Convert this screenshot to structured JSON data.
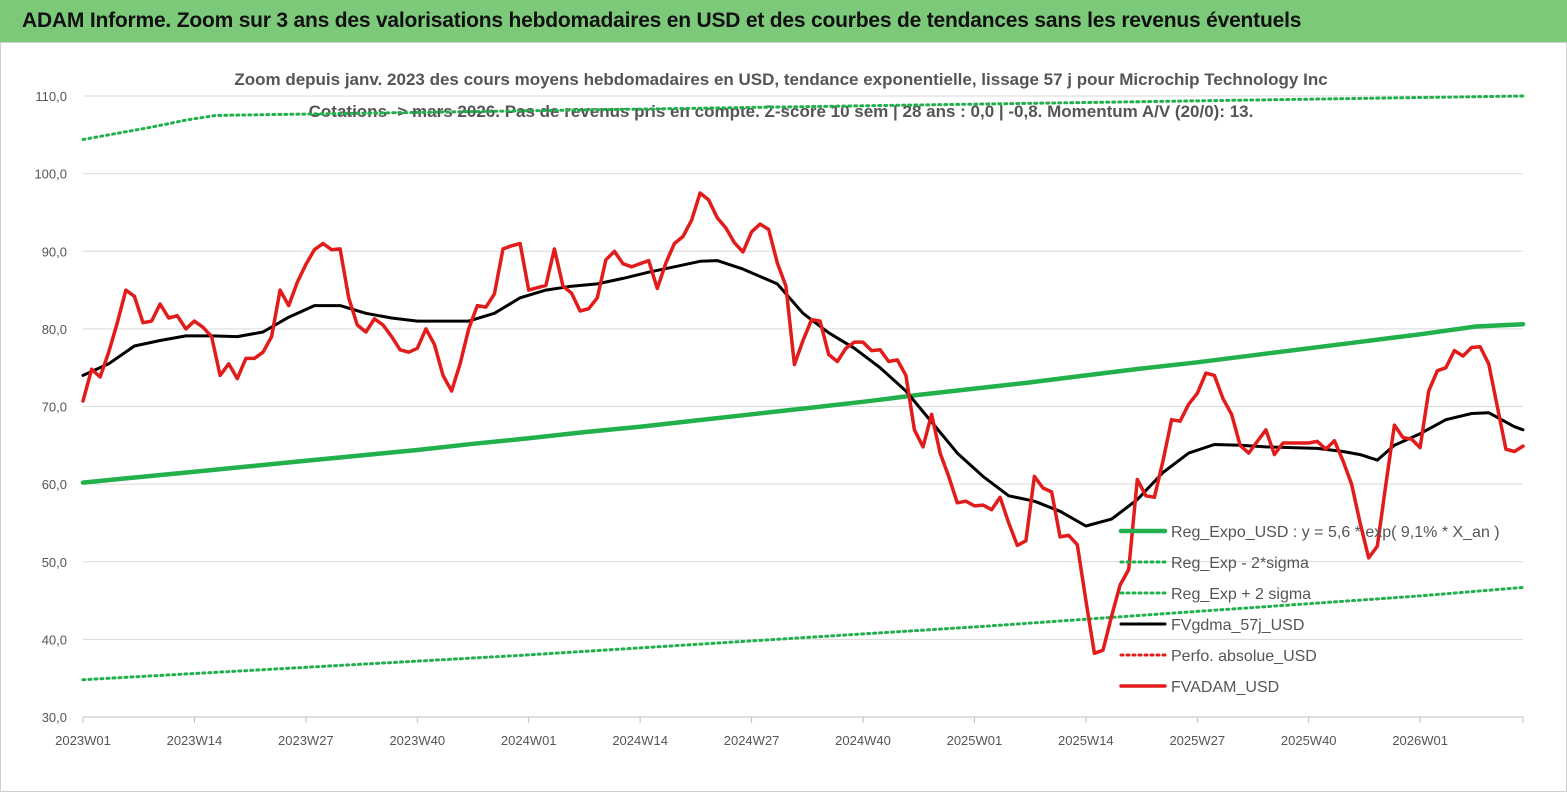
{
  "header": {
    "title": "ADAM Informe. Zoom sur 3 ans des valorisations hebdomadaires en USD et des courbes de tendances sans les revenus éventuels"
  },
  "chart_data": {
    "type": "line",
    "subtitle_line1": "Zoom depuis janv. 2023 des cours moyens hebdomadaires en USD, tendance exponentielle, lissage 57 j pour Microchip Technology Inc",
    "subtitle_line2": "Cotations -> mars 2026. Pas de revenus pris en compte. Z-score 10 sem | 28 ans : 0,0 | -0,8. Momentum A/V (20/0): 13.",
    "ylim": [
      30,
      110
    ],
    "y_ticks": [
      "30,0",
      "40,0",
      "50,0",
      "60,0",
      "70,0",
      "80,0",
      "90,0",
      "100,0",
      "110,0"
    ],
    "x_ticks": [
      "2023W01",
      "2023W14",
      "2023W27",
      "2023W40",
      "2024W01",
      "2024W14",
      "2024W27",
      "2024W40",
      "2025W01",
      "2025W14",
      "2025W27",
      "2025W40",
      "2026W01"
    ],
    "week_count": 169,
    "grid": "horizontal",
    "legend_position": "right",
    "series": [
      {
        "name": "Reg_Expo_USD : y = 5,6 * exp( 9,1% *  X_an )",
        "color": "#21b04b",
        "style": "solid",
        "values": [
          60.2,
          60.9,
          61.6,
          62.3,
          63.0,
          63.7,
          64.4,
          65.2,
          65.9,
          66.7,
          67.4,
          68.2,
          69.0,
          69.8,
          70.6,
          71.5,
          72.3,
          73.1,
          74.0,
          74.9,
          75.7,
          76.6,
          77.5,
          78.4,
          79.3,
          80.3,
          80.6
        ],
        "x": [
          0,
          6.5,
          13,
          19.5,
          26,
          32.5,
          39,
          45.5,
          52,
          58.5,
          65,
          71.5,
          78,
          84.5,
          91,
          97.5,
          104,
          110.5,
          117,
          123.5,
          130,
          136.5,
          143,
          149.5,
          156,
          162.5,
          168
        ]
      },
      {
        "name": "Reg_Exp - 2*sigma",
        "color": "#21b04b",
        "style": "dotted",
        "values": [
          34.8,
          35.6,
          36.4,
          37.2,
          38.0,
          38.9,
          39.8,
          40.7,
          41.6,
          42.6,
          43.6,
          44.6,
          45.6,
          46.7
        ],
        "x": [
          0,
          13,
          26,
          39,
          52,
          65,
          78,
          91,
          104,
          117,
          130,
          143,
          156,
          168
        ]
      },
      {
        "name": "Reg_Exp + 2 sigma",
        "color": "#21b04b",
        "style": "dotted",
        "values": [
          104.4,
          105.2,
          106.0,
          106.9,
          107.5,
          110.0
        ],
        "x": [
          0,
          4,
          8,
          12,
          15.5,
          168
        ]
      },
      {
        "name": "FVgdma_57j_USD",
        "color": "#000000",
        "style": "solid",
        "values": [
          74.0,
          75.5,
          77.8,
          78.5,
          79.1,
          79.1,
          79.0,
          79.6,
          81.5,
          83.0,
          83.0,
          82.0,
          81.4,
          81.0,
          81.0,
          81.0,
          82.0,
          84.0,
          85.0,
          85.5,
          85.8,
          86.5,
          87.3,
          88.0,
          88.7,
          88.8,
          87.7,
          85.8,
          82.0,
          79.5,
          77.5,
          75.0,
          72.0,
          68.0,
          64.0,
          61.0,
          58.5,
          57.8,
          56.5,
          54.6,
          55.5,
          58.0,
          61.5,
          64.0,
          65.1,
          65.0,
          64.8,
          64.7,
          64.6,
          64.2,
          63.8,
          63.1,
          65.0,
          66.5,
          68.3,
          69.1,
          69.2,
          67.4,
          67.0
        ],
        "x": [
          0,
          3,
          6,
          9,
          12,
          15,
          18,
          21,
          24,
          27,
          30,
          33,
          36,
          39,
          42,
          45,
          48,
          51,
          54,
          57,
          60,
          63,
          66,
          69,
          72,
          74,
          77,
          81,
          84,
          87,
          90,
          93,
          96,
          99,
          102,
          105,
          108,
          111,
          114,
          117,
          120,
          123,
          126,
          129,
          132,
          135,
          138,
          141,
          144,
          147,
          149,
          151,
          153,
          156,
          159,
          162,
          164,
          167,
          168
        ]
      },
      {
        "name": "Perfo. absolue_USD",
        "color": "#e21b1b",
        "style": "dotted",
        "values": [],
        "x": []
      },
      {
        "name": "FVADAM_USD",
        "color": "#e21b1b",
        "style": "solid",
        "values": [
          70.7,
          74.8,
          73.8,
          77.0,
          80.8,
          85.0,
          84.2,
          80.8,
          81.0,
          83.2,
          81.4,
          81.7,
          80.0,
          81.0,
          80.2,
          79.0,
          74.0,
          75.5,
          73.6,
          76.2,
          76.2,
          77.0,
          79.0,
          85.0,
          83.0,
          86.0,
          88.3,
          90.2,
          91.0,
          90.2,
          90.3,
          84.0,
          80.5,
          79.6,
          81.3,
          80.5,
          79.0,
          77.3,
          77.0,
          77.5,
          80.0,
          78.0,
          74.0,
          72.0,
          75.5,
          80.0,
          83.0,
          82.8,
          84.5,
          90.3,
          90.7,
          91.0,
          85.0,
          85.3,
          85.6,
          90.3,
          85.5,
          84.6,
          82.3,
          82.6,
          84.0,
          88.9,
          90.0,
          88.4,
          88.0,
          88.4,
          88.8,
          85.2,
          88.5,
          91.0,
          91.9,
          94.0,
          97.5,
          96.6,
          94.3,
          93.0,
          91.1,
          89.9,
          92.5,
          93.5,
          92.8,
          88.5,
          85.5,
          75.4,
          78.5,
          81.2,
          81.0,
          76.7,
          75.8,
          77.5,
          78.3,
          78.3,
          77.2,
          77.3,
          75.8,
          76.0,
          74.0,
          67.0,
          64.8,
          69.0,
          64.0,
          61.0,
          57.6,
          57.8,
          57.2,
          57.3,
          56.7,
          58.3,
          55.0,
          52.1,
          52.7,
          61.0,
          59.5,
          59.0,
          53.2,
          53.4,
          52.2,
          45.0,
          38.2,
          38.6,
          43.0,
          47.0,
          49.0,
          60.6,
          58.5,
          58.3,
          63.0,
          68.3,
          68.1,
          70.3,
          71.7,
          74.3,
          74.0,
          71.0,
          69.0,
          65.0,
          64.0,
          65.5,
          67.0,
          63.8,
          65.3,
          65.3,
          65.3,
          65.3,
          65.5,
          64.5,
          65.6,
          63.0,
          60.0,
          55.0,
          50.5,
          52.0,
          60.0,
          67.6,
          66.0,
          65.8,
          64.7,
          72.0,
          74.6,
          75.0,
          77.2,
          76.5,
          77.6,
          77.7,
          75.5,
          70.0,
          64.5,
          64.2,
          64.9
        ]
      }
    ]
  }
}
